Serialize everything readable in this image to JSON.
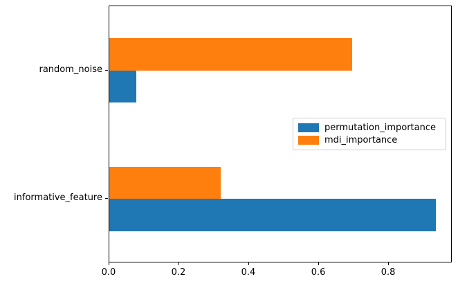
{
  "figure": {
    "background": "#ffffff",
    "axis_color": "#000000",
    "text_color": "#000000"
  },
  "chart_data": {
    "type": "bar",
    "orientation": "horizontal",
    "title": "",
    "xlabel": "",
    "ylabel": "",
    "categories": [
      "informative_feature",
      "random_noise"
    ],
    "series": [
      {
        "name": "permutation_importance",
        "color": "#1f77b4",
        "values": [
          0.935,
          0.078
        ]
      },
      {
        "name": "mdi_importance",
        "color": "#ff7f0e",
        "values": [
          0.318,
          0.694
        ]
      }
    ],
    "xlim": [
      0,
      0.982
    ],
    "ylim": [
      -0.5,
      1.5
    ],
    "x_tick_labels": [
      "0.0",
      "0.2",
      "0.4",
      "0.6",
      "0.8"
    ],
    "x_tick_values": [
      0.0,
      0.2,
      0.4,
      0.6,
      0.8
    ],
    "grid": false,
    "legend": {
      "position": "center-right",
      "border_color": "#cccccc"
    }
  }
}
